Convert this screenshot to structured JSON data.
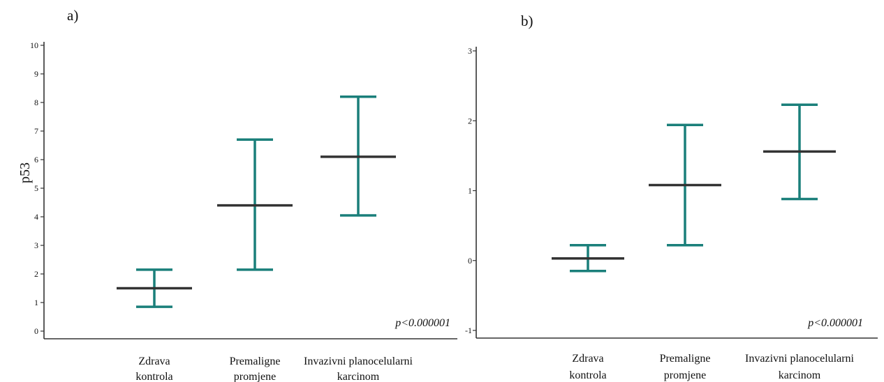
{
  "chart_data": [
    {
      "type": "errorbar",
      "panel_label": "a)",
      "ylabel": "p53",
      "xlabel": "",
      "ylim": [
        0,
        10
      ],
      "yticks": [
        0,
        1,
        2,
        3,
        4,
        5,
        6,
        7,
        8,
        9,
        10
      ],
      "categories": [
        [
          "Zdrava",
          "kontrola"
        ],
        [
          "Premaligne",
          "promjene"
        ],
        [
          "Invazivni planocelularni",
          "karcinom"
        ]
      ],
      "mean": [
        1.5,
        4.4,
        6.1
      ],
      "lower": [
        0.85,
        2.15,
        4.05
      ],
      "upper": [
        2.15,
        6.7,
        8.2
      ],
      "annotation": "p<0.000001",
      "colors": {
        "errorbar": "#1a7f7a",
        "mean": "#333333",
        "axis": "#333333"
      }
    },
    {
      "type": "errorbar",
      "panel_label": "b)",
      "ylabel": "",
      "xlabel": "",
      "ylim": [
        -1,
        3
      ],
      "yticks": [
        -1,
        0,
        1,
        2,
        3
      ],
      "categories": [
        [
          "Zdrava",
          "kontrola"
        ],
        [
          "Premaligne",
          "promjene"
        ],
        [
          "Invazivni planocelularni",
          "karcinom"
        ]
      ],
      "mean": [
        0.03,
        1.08,
        1.56
      ],
      "lower": [
        -0.15,
        0.22,
        0.88
      ],
      "upper": [
        0.22,
        1.94,
        2.23
      ],
      "annotation": "p<0.000001",
      "colors": {
        "errorbar": "#1a7f7a",
        "mean": "#333333",
        "axis": "#333333"
      }
    }
  ]
}
